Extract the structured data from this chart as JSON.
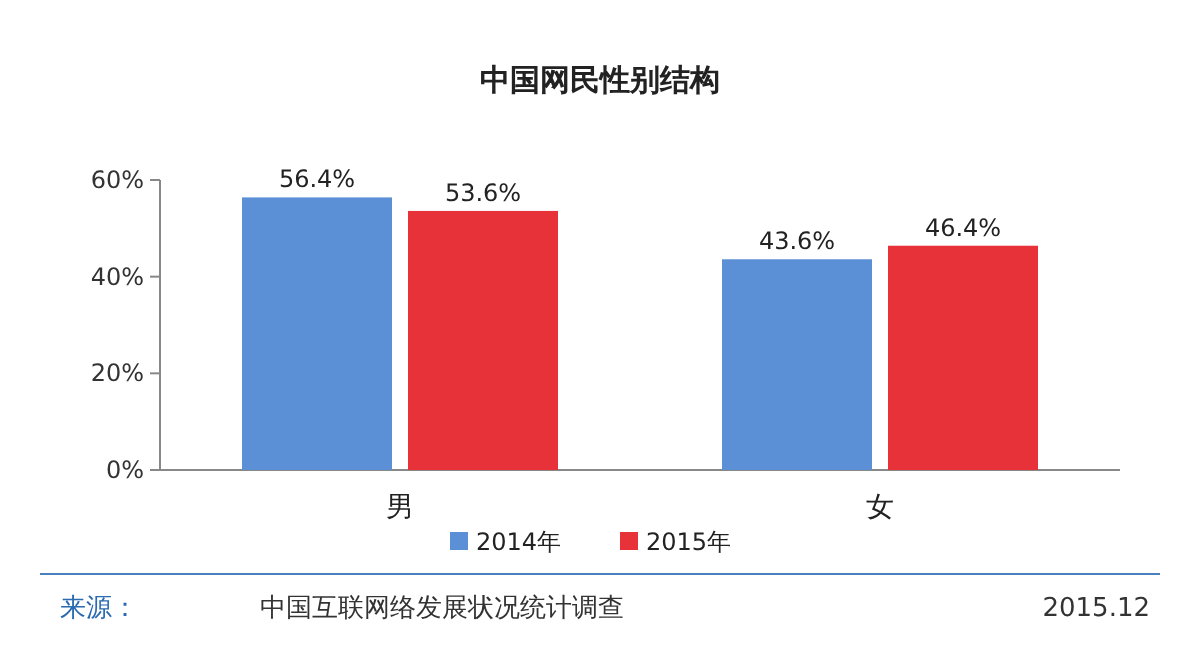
{
  "chart_data": {
    "type": "bar",
    "title": "中国网民性别结构",
    "categories": [
      "男",
      "女"
    ],
    "series": [
      {
        "name": "2014年",
        "color": "#5b8fd6",
        "values": [
          56.4,
          43.6
        ],
        "value_labels": [
          "56.4%",
          "43.6%"
        ]
      },
      {
        "name": "2015年",
        "color": "#e8323a",
        "values": [
          53.6,
          46.4
        ],
        "value_labels": [
          "53.6%",
          "46.4%"
        ]
      }
    ],
    "ylim": [
      0,
      60
    ],
    "yticks": [
      {
        "value": 0,
        "label": "0%"
      },
      {
        "value": 20,
        "label": "20%"
      },
      {
        "value": 40,
        "label": "40%"
      },
      {
        "value": 60,
        "label": "60%"
      }
    ],
    "legend": "bottom",
    "annotations": [
      "来源：",
      "中国互联网络发展状况统计调查",
      "2015.12"
    ]
  }
}
